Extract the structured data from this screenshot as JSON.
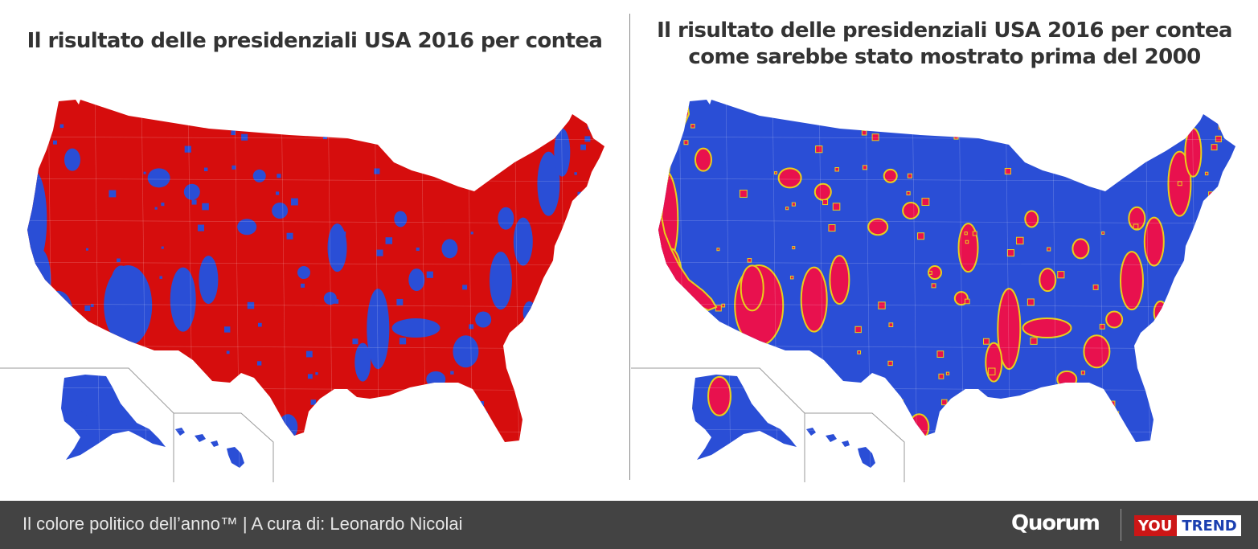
{
  "titles": {
    "left": "Il risultato delle presidenziali USA 2016 per contea",
    "right_line1": "Il risultato delle presidenziali USA 2016 per contea",
    "right_line2": "come sarebbe stato mostrato prima del 2000"
  },
  "colors": {
    "red": "#d60d0d",
    "blue": "#2a4ed6",
    "magenta": "#e8114e",
    "outline": "#e8cf1a"
  },
  "maps": {
    "left": {
      "base_color": "red",
      "minority_color": "blue"
    },
    "right": {
      "base_color": "blue",
      "minority_color": "magenta"
    }
  },
  "footer": {
    "credit": "Il colore politico dell’anno™  |  A cura di: Leonardo Nicolai",
    "logo_quorum": "Quorum",
    "logo_you": "YOU",
    "logo_trend": "TREND"
  }
}
